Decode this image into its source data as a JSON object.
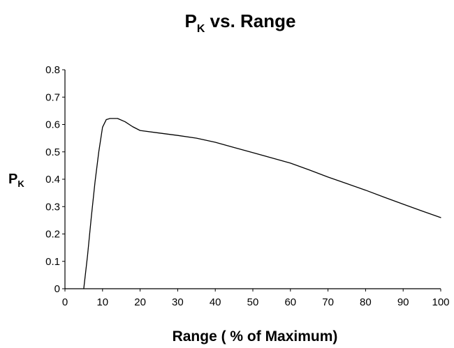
{
  "chart_data": {
    "type": "line",
    "title": {
      "main": "P",
      "subscript": "K",
      "rest": " vs. Range"
    },
    "xlabel": "Range ( % of Maximum)",
    "ylabel": {
      "main": "P",
      "subscript": "K"
    },
    "xlim": [
      0,
      100
    ],
    "ylim": [
      0,
      0.8
    ],
    "xticks": [
      "0",
      "10",
      "20",
      "30",
      "40",
      "50",
      "60",
      "70",
      "80",
      "90",
      "100"
    ],
    "yticks": [
      "0",
      "0.1",
      "0.2",
      "0.3",
      "0.4",
      "0.5",
      "0.6",
      "0.7",
      "0.8"
    ],
    "grid": false,
    "series": [
      {
        "x": [
          5,
          6,
          7,
          8,
          9,
          10,
          11,
          12,
          14,
          16,
          18,
          20,
          25,
          30,
          35,
          40,
          45,
          50,
          55,
          60,
          65,
          70,
          75,
          80,
          85,
          90,
          95,
          100
        ],
        "y": [
          0,
          0.12,
          0.26,
          0.39,
          0.5,
          0.59,
          0.618,
          0.622,
          0.622,
          0.61,
          0.592,
          0.578,
          0.569,
          0.56,
          0.55,
          0.535,
          0.516,
          0.497,
          0.478,
          0.459,
          0.434,
          0.408,
          0.384,
          0.36,
          0.334,
          0.309,
          0.284,
          0.26
        ]
      }
    ]
  }
}
